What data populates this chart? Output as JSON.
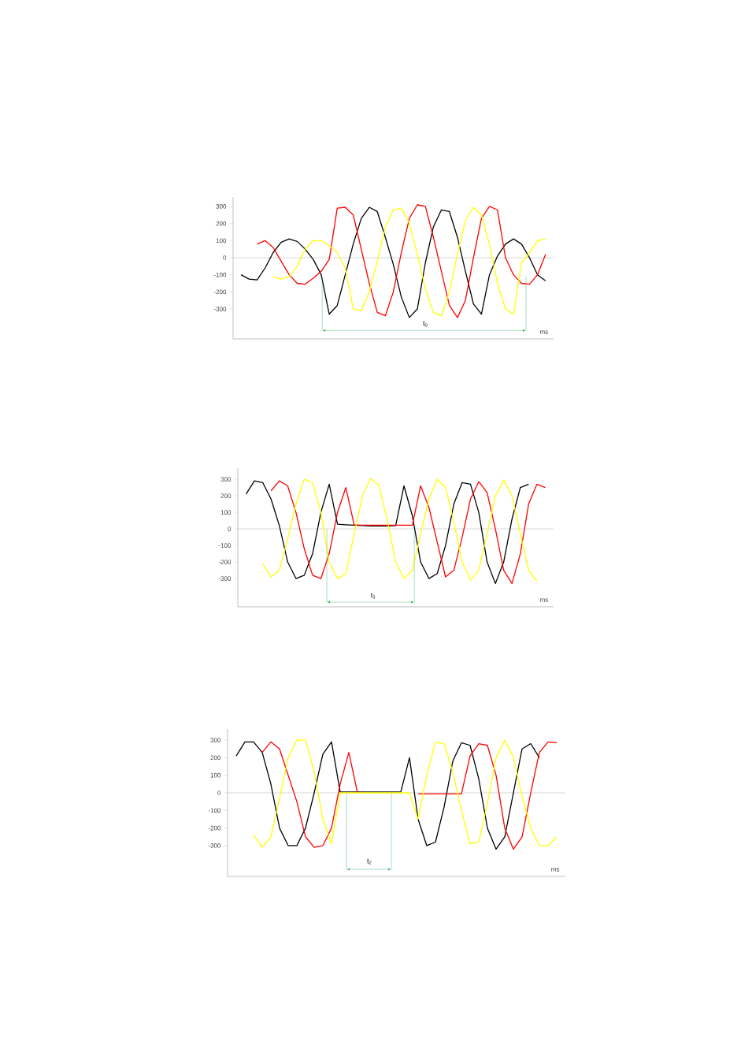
{
  "chart_data": [
    {
      "type": "line",
      "xlabel": "ms",
      "annotations": [
        "t$_{0}$"
      ],
      "categories": [
        null,
        null,
        null,
        null,
        null,
        null,
        null,
        null,
        null,
        null,
        null,
        null,
        null,
        null,
        null,
        null,
        null,
        null,
        null,
        null,
        null,
        null,
        null,
        null,
        null,
        null,
        null,
        null,
        null,
        null,
        null,
        null,
        null,
        null,
        null,
        null,
        null,
        null,
        null
      ],
      "ylim": [
        -475,
        355
      ],
      "yticks": [
        -300,
        -200,
        -100,
        0,
        100,
        200,
        300
      ],
      "tick_labels": "y",
      "grid": false,
      "marker": "none",
      "line_style": "solid",
      "ref_lines": [
        {
          "axis": "y",
          "value": 0,
          "color": "#a0a0a0"
        }
      ],
      "series": [
        {
          "color": "#000000",
          "values": [
            -100,
            -125,
            -130,
            -60,
            30,
            90,
            110,
            95,
            50,
            -10,
            -100,
            -330,
            -280,
            -100,
            80,
            230,
            295,
            270,
            120,
            -40,
            -230,
            -350,
            -300,
            -30,
            180,
            280,
            270,
            120,
            -80,
            -270,
            -330,
            -100,
            10,
            80,
            110,
            80,
            0,
            -100,
            -135
          ]
        },
        {
          "color": "#ff0000",
          "values": [
            null,
            null,
            80,
            100,
            60,
            -20,
            -100,
            -150,
            -155,
            -120,
            -80,
            -10,
            290,
            295,
            250,
            50,
            -150,
            -320,
            -340,
            -200,
            30,
            230,
            310,
            300,
            120,
            -80,
            -280,
            -350,
            -250,
            0,
            230,
            300,
            280,
            0,
            -100,
            -150,
            -155,
            -100,
            20
          ]
        },
        {
          "color": "#ffff00",
          "values": [
            null,
            null,
            null,
            null,
            -110,
            -125,
            -110,
            -50,
            50,
            100,
            100,
            70,
            30,
            -60,
            -300,
            -310,
            -200,
            -20,
            180,
            280,
            290,
            200,
            20,
            -180,
            -320,
            -340,
            -200,
            20,
            220,
            295,
            250,
            80,
            -150,
            -300,
            -330,
            -30,
            30,
            100,
            110
          ]
        }
      ]
    },
    {
      "type": "line",
      "xlabel": "ms",
      "annotations": [
        "t$_{1}$"
      ],
      "categories": [
        null,
        null,
        null,
        null,
        null,
        null,
        null,
        null,
        null,
        null,
        null,
        null,
        null,
        null,
        null,
        null,
        null,
        null,
        null,
        null,
        null,
        null,
        null,
        null,
        null,
        null,
        null,
        null,
        null,
        null,
        null,
        null,
        null,
        null,
        null,
        null,
        null
      ],
      "ylim": [
        -471,
        367
      ],
      "yticks": [
        -300,
        -200,
        -100,
        0,
        100,
        200,
        300
      ],
      "tick_labels": "y",
      "grid": false,
      "marker": "none",
      "line_style": "solid",
      "ref_lines": [
        {
          "axis": "y",
          "value": 0,
          "color": "#a0a0a0"
        }
      ],
      "series": [
        {
          "color": "#000000",
          "values": [
            210,
            290,
            280,
            180,
            20,
            -200,
            -300,
            -280,
            -150,
            100,
            270,
            28,
            25,
            22,
            20,
            18,
            18,
            18,
            20,
            260,
            80,
            -200,
            -300,
            -270,
            -100,
            150,
            280,
            270,
            100,
            -200,
            -330,
            -200,
            60,
            250,
            270,
            null,
            null
          ]
        },
        {
          "color": "#ff0000",
          "values": [
            null,
            null,
            null,
            230,
            290,
            260,
            100,
            -120,
            -280,
            -300,
            -150,
            100,
            250,
            25,
            22,
            22,
            22,
            22,
            22,
            22,
            22,
            260,
            130,
            -80,
            -290,
            -250,
            -50,
            180,
            285,
            220,
            0,
            -250,
            -330,
            -150,
            150,
            270,
            250
          ]
        },
        {
          "color": "#ffff00",
          "values": [
            null,
            null,
            -210,
            -290,
            -250,
            -60,
            150,
            300,
            280,
            100,
            -200,
            -300,
            -270,
            -30,
            200,
            305,
            260,
            50,
            -200,
            -300,
            -250,
            -30,
            180,
            300,
            250,
            40,
            -200,
            -310,
            -250,
            -30,
            200,
            295,
            200,
            -30,
            -250,
            -315,
            null
          ]
        }
      ]
    },
    {
      "type": "line",
      "xlabel": "ms",
      "annotations": [
        "t$_{2}$"
      ],
      "categories": [
        null,
        null,
        null,
        null,
        null,
        null,
        null,
        null,
        null,
        null,
        null,
        null,
        null,
        null,
        null,
        null,
        null,
        null,
        null,
        null,
        null,
        null,
        null,
        null,
        null,
        null,
        null,
        null,
        null,
        null,
        null,
        null,
        null,
        null,
        null,
        null,
        null,
        null
      ],
      "ylim": [
        -475,
        363
      ],
      "yticks": [
        -300,
        -200,
        -100,
        0,
        100,
        200,
        300
      ],
      "tick_labels": "y",
      "grid": false,
      "marker": "none",
      "line_style": "solid",
      "ref_lines": [
        {
          "axis": "y",
          "value": 0,
          "color": "#a0a0a0"
        }
      ],
      "series": [
        {
          "color": "#000000",
          "values": [
            210,
            290,
            290,
            230,
            50,
            -200,
            -300,
            -300,
            -200,
            0,
            220,
            290,
            5,
            5,
            5,
            5,
            5,
            5,
            5,
            5,
            200,
            -150,
            -300,
            -280,
            -80,
            180,
            285,
            270,
            80,
            -200,
            -320,
            -250,
            0,
            250,
            280,
            200,
            null,
            null
          ]
        },
        {
          "color": "#ff0000",
          "values": [
            null,
            null,
            null,
            230,
            290,
            250,
            100,
            -50,
            -250,
            -310,
            -300,
            -200,
            50,
            230,
            0,
            null,
            null,
            null,
            null,
            null,
            null,
            -5,
            -5,
            -5,
            -5,
            -5,
            -5,
            210,
            280,
            270,
            100,
            -200,
            -320,
            -250,
            0,
            230,
            290,
            285
          ]
        },
        {
          "color": "#ffff00",
          "values": [
            null,
            null,
            -240,
            -310,
            -250,
            -30,
            200,
            300,
            300,
            120,
            -150,
            -290,
            0,
            0,
            0,
            0,
            0,
            0,
            0,
            0,
            0,
            -150,
            100,
            290,
            280,
            120,
            -100,
            -290,
            -280,
            -60,
            200,
            300,
            200,
            -20,
            -200,
            -300,
            -300,
            -250
          ]
        }
      ]
    }
  ]
}
